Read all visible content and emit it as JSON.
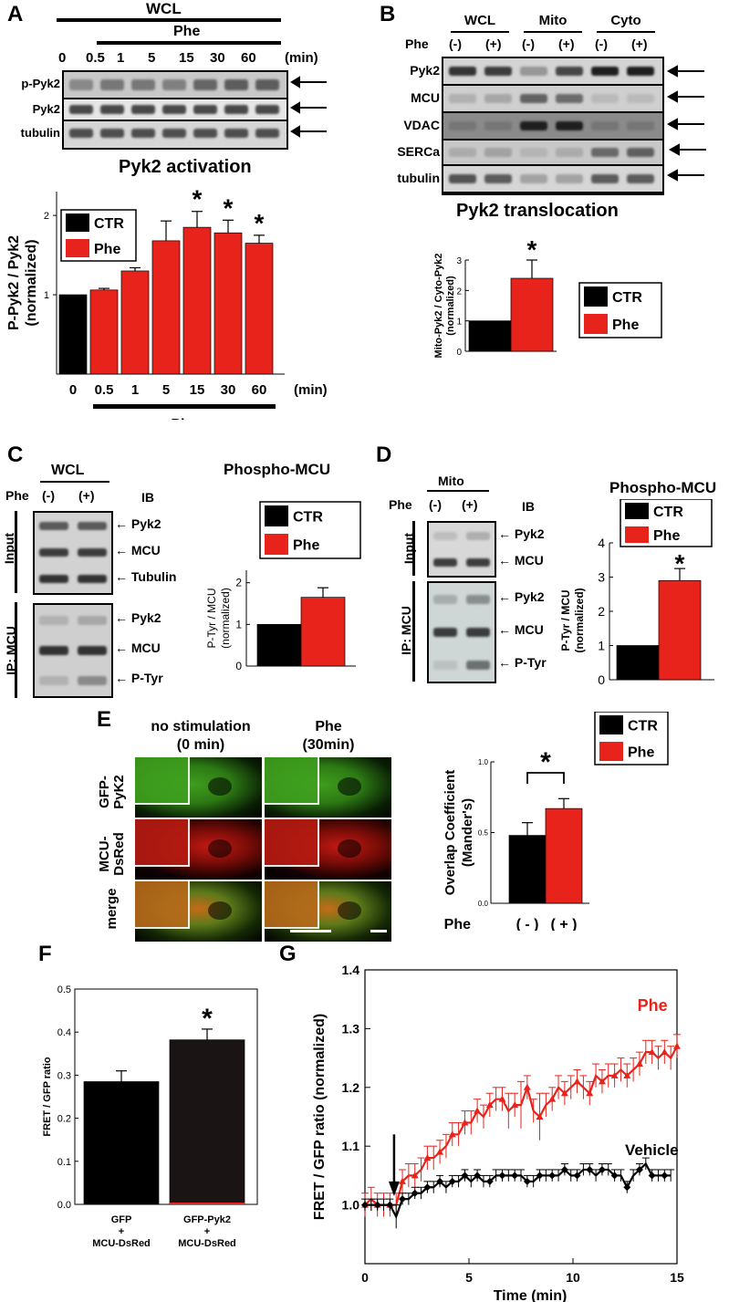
{
  "panels": {
    "A": {
      "letter": "A",
      "header": "WCL",
      "treatment_label": "Phe",
      "times": [
        "0",
        "0.5",
        "1",
        "5",
        "15",
        "30",
        "60"
      ],
      "time_unit": "(min)",
      "blot_rows": [
        "p-Pyk2",
        "Pyk2",
        "tubulin"
      ],
      "chart_title": "Pyk2 activation",
      "ylabel_line1": "P-Pyk2 / Pyk2",
      "ylabel_line2": "(normalized)",
      "xlabel": "Phe",
      "legend": [
        "CTR",
        "Phe"
      ]
    },
    "B": {
      "letter": "B",
      "fractions": [
        "WCL",
        "Mito",
        "Cyto"
      ],
      "treatment_label": "Phe",
      "signs": [
        "(-)",
        "(+)",
        "(-)",
        "(+)",
        "(-)",
        "(+)"
      ],
      "blot_rows": [
        "Pyk2",
        "MCU",
        "VDAC",
        "SERCa",
        "tubulin"
      ],
      "chart_title": "Pyk2 translocation",
      "ylabel_line1": "Mito-Pyk2 / Cyto-Pyk2",
      "ylabel_line2": "(normalized)",
      "legend": [
        "CTR",
        "Phe"
      ]
    },
    "C": {
      "letter": "C",
      "header": "WCL",
      "treatment_label": "Phe",
      "signs": [
        "(-)",
        "(+)"
      ],
      "ib_label": "IB",
      "input_label": "Input",
      "ip_label": "IP: MCU",
      "input_rows": [
        "Pyk2",
        "MCU",
        "Tubulin"
      ],
      "ip_rows": [
        "Pyk2",
        "MCU",
        "P-Tyr"
      ],
      "chart_title": "Phospho-MCU",
      "ylabel_line1": "P-Tyr / MCU",
      "ylabel_line2": "(normalized)",
      "legend": [
        "CTR",
        "Phe"
      ]
    },
    "D": {
      "letter": "D",
      "header": "Mito",
      "treatment_label": "Phe",
      "signs": [
        "(-)",
        "(+)"
      ],
      "ib_label": "IB",
      "input_label": "Input",
      "ip_label": "IP: MCU",
      "input_rows": [
        "Pyk2",
        "MCU"
      ],
      "ip_rows": [
        "Pyk2",
        "MCU",
        "P-Tyr"
      ],
      "chart_title": "Phospho-MCU",
      "ylabel_line1": "P-Tyr / MCU",
      "ylabel_line2": "(normalized)",
      "legend": [
        "CTR",
        "Phe"
      ]
    },
    "E": {
      "letter": "E",
      "col1_line1": "no stimulation",
      "col1_line2": "(0 min)",
      "col2_line1": "Phe",
      "col2_line2": "(30min)",
      "row_labels": [
        [
          "GFP-",
          "PyK2"
        ],
        [
          "MCU-",
          "DsRed"
        ],
        [
          "merge",
          ""
        ]
      ],
      "ylabel_line1": "Overlap Coefficient",
      "ylabel_line2": "(Mander's)",
      "x_prefix": "Phe",
      "x_signs": [
        "( - )",
        "( + )"
      ],
      "legend": [
        "CTR",
        "Phe"
      ]
    },
    "F": {
      "letter": "F",
      "ylabel": "FRET / GFP ratio",
      "cat1": [
        "GFP",
        "+",
        "MCU-DsRed"
      ],
      "cat2": [
        "GFP-Pyk2",
        "+",
        "MCU-DsRed"
      ]
    },
    "G": {
      "letter": "G",
      "ylabel": "FRET / GFP ratio (normalized)",
      "xlabel": "Time (min)",
      "series_labels": [
        "Phe",
        "Vehicle"
      ]
    }
  },
  "colors": {
    "ctr": "#000000",
    "phe": "#e8231c",
    "gfp": "#47b51f",
    "dsred": "#e0251a"
  },
  "chart_data": [
    {
      "type": "bar",
      "panel": "A",
      "title": "Pyk2 activation",
      "categories": [
        "0",
        "0.5",
        "1",
        "5",
        "15",
        "30",
        "60"
      ],
      "values": [
        1.0,
        1.06,
        1.3,
        1.68,
        1.85,
        1.78,
        1.65
      ],
      "errors": [
        0,
        0.02,
        0.04,
        0.25,
        0.2,
        0.16,
        0.1
      ],
      "significant": [
        false,
        false,
        false,
        false,
        true,
        true,
        true
      ],
      "colors": [
        "ctr",
        "phe",
        "phe",
        "phe",
        "phe",
        "phe",
        "phe"
      ],
      "ylim": [
        0,
        2.3
      ],
      "yticks": [
        1,
        2
      ]
    },
    {
      "type": "bar",
      "panel": "B",
      "title": "Pyk2 translocation",
      "categories": [
        "CTR",
        "Phe"
      ],
      "values": [
        1.0,
        2.4
      ],
      "errors": [
        0,
        0.6
      ],
      "significant": [
        false,
        true
      ],
      "ylim": [
        0,
        3
      ],
      "yticks": [
        0,
        1,
        2,
        3
      ]
    },
    {
      "type": "bar",
      "panel": "C",
      "title": "Phospho-MCU",
      "categories": [
        "CTR",
        "Phe"
      ],
      "values": [
        1.0,
        1.65
      ],
      "errors": [
        0,
        0.23
      ],
      "significant": [
        false,
        false
      ],
      "ylim": [
        0,
        2.3
      ],
      "yticks": [
        0,
        1,
        2
      ]
    },
    {
      "type": "bar",
      "panel": "D",
      "title": "Phospho-MCU",
      "categories": [
        "CTR",
        "Phe"
      ],
      "values": [
        1.0,
        2.9
      ],
      "errors": [
        0,
        0.35
      ],
      "significant": [
        false,
        true
      ],
      "ylim": [
        0,
        4
      ],
      "yticks": [
        0,
        1,
        2,
        3,
        4
      ]
    },
    {
      "type": "bar",
      "panel": "E",
      "categories": [
        "( - )",
        "( + )"
      ],
      "values": [
        0.48,
        0.67
      ],
      "errors": [
        0.09,
        0.07
      ],
      "significant_bracket": true,
      "ylim": [
        0,
        1.0
      ],
      "yticks": [
        0.0,
        0.5,
        1.0
      ]
    },
    {
      "type": "bar",
      "panel": "F",
      "categories": [
        "GFP + MCU-DsRed",
        "GFP-Pyk2 + MCU-DsRed"
      ],
      "values": [
        0.285,
        0.382
      ],
      "errors": [
        0.025,
        0.025
      ],
      "significant": [
        false,
        true
      ],
      "ylim": [
        0,
        0.5
      ],
      "yticks": [
        0.0,
        0.1,
        0.2,
        0.3,
        0.4,
        0.5
      ]
    },
    {
      "type": "line",
      "panel": "G",
      "xlabel": "Time (min)",
      "ylabel": "FRET / GFP ratio (normalized)",
      "xlim": [
        0,
        15
      ],
      "ylim": [
        0.9,
        1.4
      ],
      "xticks": [
        0,
        5,
        10,
        15
      ],
      "yticks": [
        1.0,
        1.1,
        1.2,
        1.3,
        1.4
      ],
      "arrow_x": 1.4,
      "series": [
        {
          "name": "Phe",
          "color": "phe",
          "x": [
            0,
            0.3,
            0.6,
            0.9,
            1.2,
            1.5,
            1.8,
            2.1,
            2.4,
            2.7,
            3.0,
            3.3,
            3.6,
            3.9,
            4.2,
            4.5,
            4.8,
            5.1,
            5.4,
            5.7,
            6.0,
            6.3,
            6.6,
            6.9,
            7.2,
            7.5,
            7.8,
            8.1,
            8.4,
            8.7,
            9.0,
            9.3,
            9.6,
            9.9,
            10.2,
            10.5,
            10.8,
            11.1,
            11.4,
            11.7,
            12.0,
            12.3,
            12.6,
            12.9,
            13.2,
            13.5,
            13.8,
            14.1,
            14.4,
            14.7,
            15.0
          ],
          "y": [
            1.0,
            1.01,
            1.0,
            1.0,
            1.0,
            1.0,
            1.04,
            1.05,
            1.05,
            1.06,
            1.08,
            1.08,
            1.09,
            1.1,
            1.12,
            1.12,
            1.14,
            1.14,
            1.16,
            1.15,
            1.17,
            1.18,
            1.18,
            1.16,
            1.17,
            1.17,
            1.2,
            1.16,
            1.15,
            1.17,
            1.18,
            1.2,
            1.19,
            1.2,
            1.21,
            1.2,
            1.19,
            1.22,
            1.21,
            1.22,
            1.22,
            1.23,
            1.22,
            1.23,
            1.24,
            1.26,
            1.26,
            1.25,
            1.26,
            1.25,
            1.27
          ],
          "errors": [
            0.02,
            0.02,
            0.02,
            0.02,
            0.02,
            0.02,
            0.02,
            0.02,
            0.02,
            0.02,
            0.02,
            0.02,
            0.02,
            0.02,
            0.02,
            0.02,
            0.02,
            0.02,
            0.02,
            0.02,
            0.02,
            0.02,
            0.02,
            0.03,
            0.02,
            0.04,
            0.02,
            0.02,
            0.04,
            0.02,
            0.02,
            0.02,
            0.02,
            0.02,
            0.02,
            0.02,
            0.02,
            0.02,
            0.02,
            0.02,
            0.02,
            0.02,
            0.02,
            0.02,
            0.02,
            0.02,
            0.02,
            0.02,
            0.02,
            0.02,
            0.02
          ]
        },
        {
          "name": "Vehicle",
          "color": "ctr",
          "x": [
            0,
            0.3,
            0.6,
            0.9,
            1.2,
            1.5,
            1.8,
            2.1,
            2.4,
            2.7,
            3.0,
            3.3,
            3.6,
            3.9,
            4.2,
            4.5,
            4.8,
            5.1,
            5.4,
            5.7,
            6.0,
            6.3,
            6.6,
            6.9,
            7.2,
            7.5,
            7.8,
            8.1,
            8.4,
            8.7,
            9.0,
            9.3,
            9.6,
            9.9,
            10.2,
            10.5,
            10.8,
            11.1,
            11.4,
            11.7,
            12.0,
            12.3,
            12.6,
            12.9,
            13.2,
            13.5,
            13.8,
            14.1,
            14.4,
            14.7
          ],
          "y": [
            1.0,
            1.0,
            1.0,
            1.0,
            1.0,
            0.98,
            1.01,
            1.01,
            1.02,
            1.02,
            1.03,
            1.03,
            1.04,
            1.03,
            1.04,
            1.04,
            1.05,
            1.04,
            1.05,
            1.04,
            1.04,
            1.05,
            1.05,
            1.05,
            1.05,
            1.05,
            1.04,
            1.04,
            1.05,
            1.05,
            1.05,
            1.05,
            1.06,
            1.05,
            1.05,
            1.06,
            1.06,
            1.05,
            1.06,
            1.06,
            1.05,
            1.05,
            1.03,
            1.05,
            1.06,
            1.07,
            1.05,
            1.05,
            1.05,
            1.05
          ],
          "errors": [
            0.01,
            0.01,
            0.01,
            0.01,
            0.01,
            0.02,
            0.01,
            0.01,
            0.01,
            0.01,
            0.01,
            0.01,
            0.01,
            0.01,
            0.01,
            0.01,
            0.01,
            0.01,
            0.01,
            0.01,
            0.01,
            0.01,
            0.01,
            0.01,
            0.01,
            0.01,
            0.01,
            0.01,
            0.01,
            0.01,
            0.01,
            0.01,
            0.01,
            0.01,
            0.01,
            0.01,
            0.01,
            0.01,
            0.01,
            0.01,
            0.01,
            0.01,
            0.01,
            0.01,
            0.01,
            0.01,
            0.01,
            0.01,
            0.01,
            0.01
          ]
        }
      ]
    }
  ]
}
